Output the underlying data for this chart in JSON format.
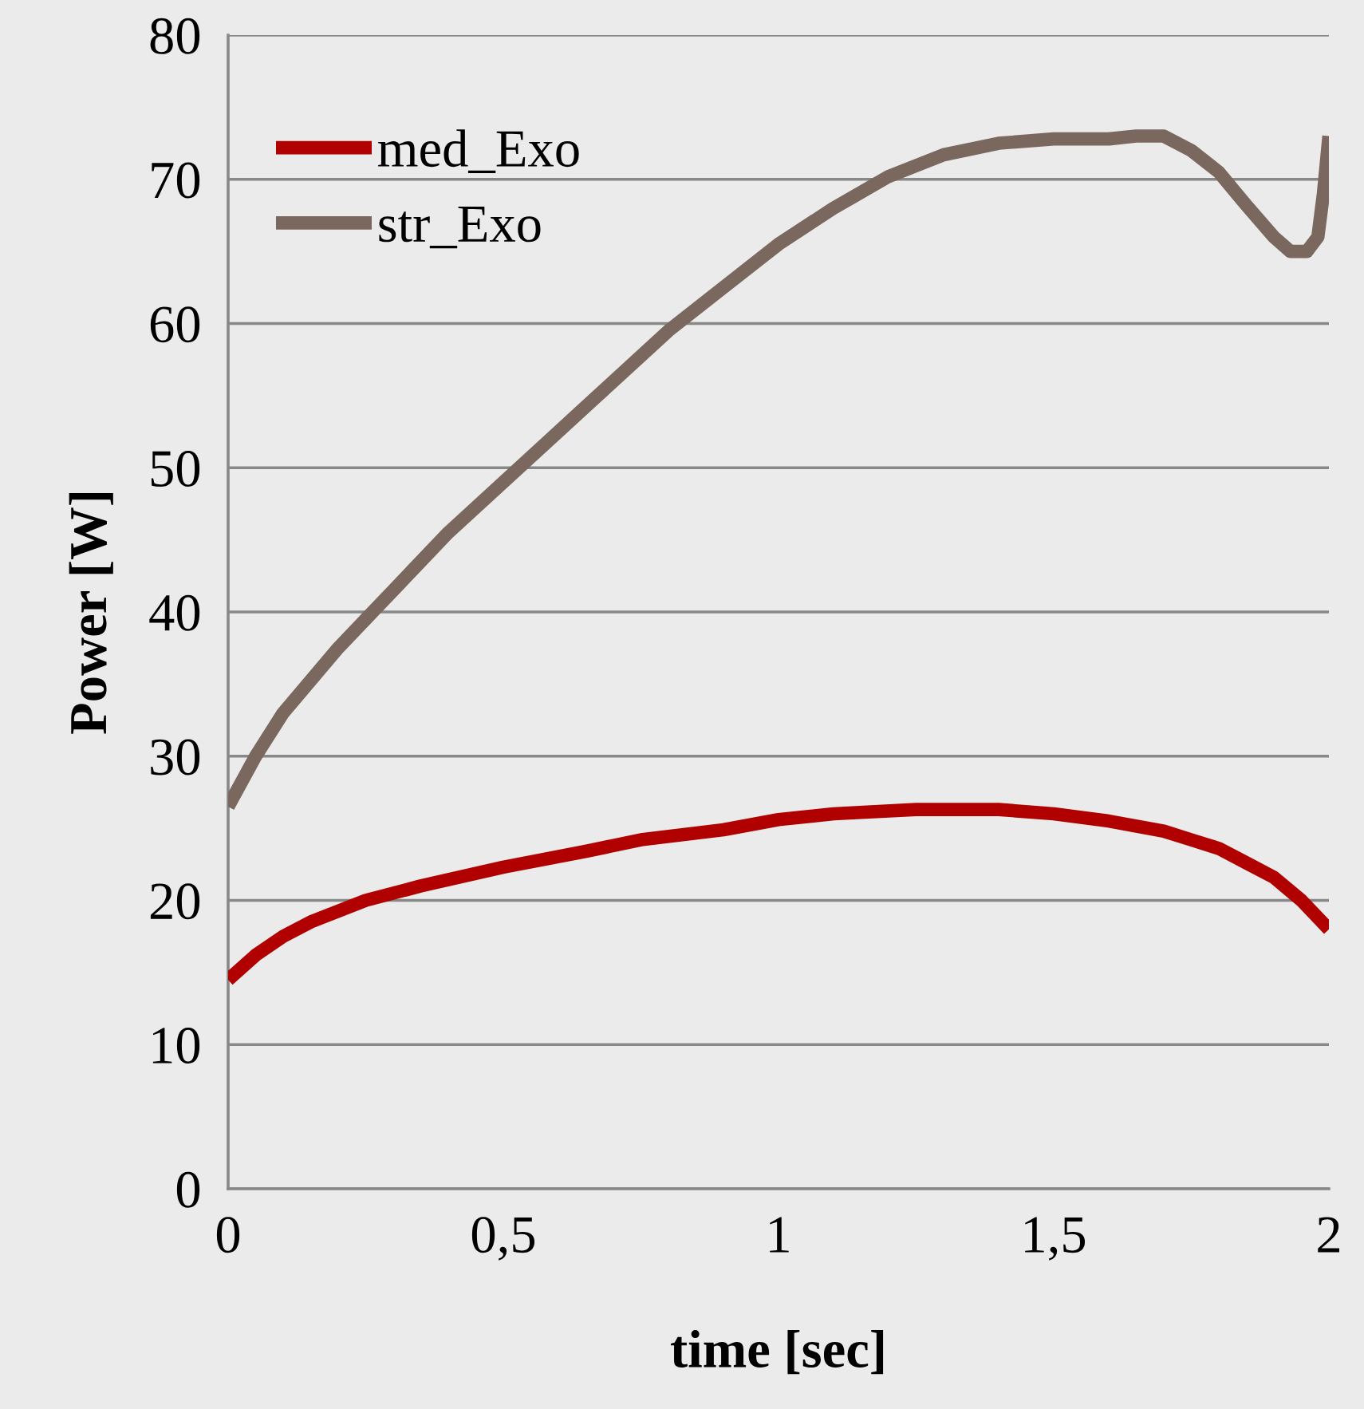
{
  "chart_data": {
    "type": "line",
    "xlabel": "time [sec]",
    "ylabel": "Power [W]",
    "xlim": [
      0,
      2
    ],
    "ylim": [
      0,
      80
    ],
    "xticks": [
      0,
      {
        "value": 0.5,
        "label": "0,5"
      },
      1,
      {
        "value": 1.5,
        "label": "1,5"
      },
      2
    ],
    "yticks": [
      0,
      10,
      20,
      30,
      40,
      50,
      60,
      70,
      80
    ],
    "grid": "y",
    "legend": "top left",
    "marker": "none",
    "line_style": "solid",
    "series": [
      {
        "name": "med_Exo",
        "color": "#b00000",
        "x": [
          0,
          0.05,
          0.1,
          0.15,
          0.25,
          0.35,
          0.5,
          0.65,
          0.75,
          0.9,
          1,
          1.1,
          1.25,
          1.4,
          1.5,
          1.6,
          1.7,
          1.75,
          1.8,
          1.85,
          1.9,
          1.95,
          2
        ],
        "values": [
          14.5,
          16.2,
          17.5,
          18.5,
          20,
          21,
          22.3,
          23.4,
          24.2,
          24.9,
          25.6,
          26,
          26.3,
          26.3,
          26,
          25.5,
          24.8,
          24.2,
          23.6,
          22.6,
          21.6,
          20,
          18
        ]
      },
      {
        "name": "str_Exo",
        "color": "#7a685e",
        "x": [
          0,
          0.05,
          0.1,
          0.2,
          0.3,
          0.4,
          0.5,
          0.6,
          0.7,
          0.8,
          0.9,
          1,
          1.1,
          1.2,
          1.3,
          1.4,
          1.5,
          1.6,
          1.65,
          1.7,
          1.75,
          1.8,
          1.85,
          1.9,
          1.93,
          1.96,
          1.98,
          1.99,
          2
        ],
        "values": [
          26.5,
          30,
          33,
          37.5,
          41.5,
          45.5,
          49,
          52.5,
          56,
          59.5,
          62.5,
          65.5,
          68,
          70.2,
          71.7,
          72.5,
          72.8,
          72.8,
          73,
          73,
          72,
          70.5,
          68.2,
          66,
          65,
          65,
          66,
          69,
          73
        ]
      }
    ]
  }
}
